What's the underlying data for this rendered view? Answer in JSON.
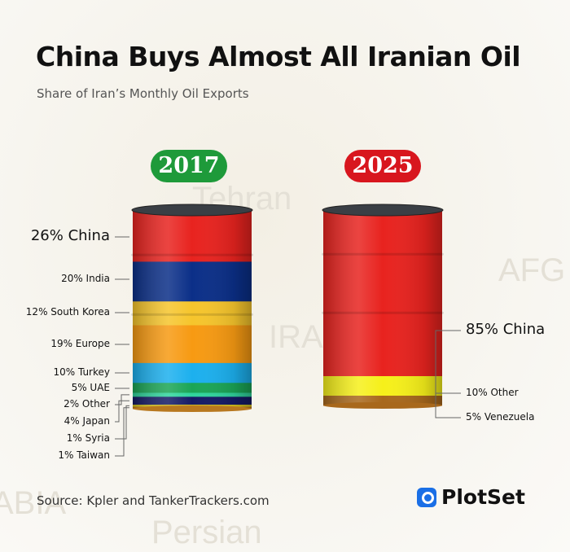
{
  "title": "China Buys Almost All Iranian Oil",
  "subtitle": "Share of Iran’s Monthly Oil Exports",
  "source": "Source: Kpler and TankerTrackers.com",
  "brand": "PlotSet",
  "map_labels": [
    "Tehran",
    "IRAN",
    "AFG",
    "ABIA",
    "Persian"
  ],
  "chart_data": [
    {
      "type": "stacked-barrel",
      "year": "2017",
      "badge_color": "#1e9a3a",
      "categories": [
        "China",
        "India",
        "South Korea",
        "Europe",
        "Turkey",
        "UAE",
        "Other",
        "Japan",
        "Syria",
        "Taiwan"
      ],
      "values": [
        26,
        20,
        12,
        19,
        10,
        5,
        2,
        4,
        1,
        1
      ],
      "labels": [
        "26% China",
        "20% India",
        "12% South Korea",
        "19% Europe",
        "10% Turkey",
        "5% UAE",
        "2% Other",
        "4% Japan",
        "1% Syria",
        "1% Taiwan"
      ],
      "colors": [
        "#e8231f",
        "#0b2f88",
        "#f6c52c",
        "#f79a12",
        "#1cb0ee",
        "#1aa556",
        "#30d49c",
        "#151a66",
        "#e0cc1a",
        "#b8781f"
      ]
    },
    {
      "type": "stacked-barrel",
      "year": "2025",
      "badge_color": "#d8161e",
      "categories": [
        "China",
        "Other",
        "Venezuela"
      ],
      "values": [
        85,
        10,
        5
      ],
      "labels": [
        "85% China",
        "10% Other",
        "5% Venezuela"
      ],
      "colors": [
        "#e8231f",
        "#f6f01a",
        "#a8681c"
      ]
    }
  ]
}
